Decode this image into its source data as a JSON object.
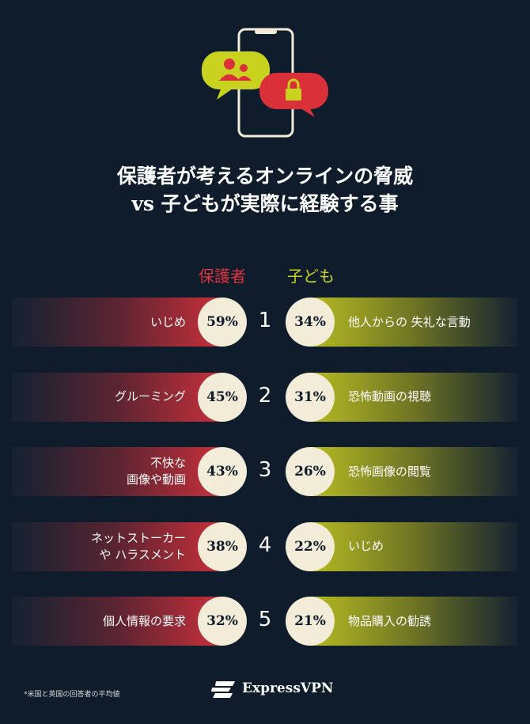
{
  "header": {
    "title_lines": [
      "保護者が考えるオンラインの脅威",
      "vs 子どもが実際に経験する事"
    ]
  },
  "columns": {
    "parents": "保護者",
    "children": "子ども"
  },
  "rows": [
    {
      "rank": 1,
      "parent": {
        "label_lines": [
          "いじめ"
        ],
        "percent": "59%"
      },
      "child": {
        "label_lines": [
          "他人からの 失礼な言動"
        ],
        "percent": "34%"
      }
    },
    {
      "rank": 2,
      "parent": {
        "label_lines": [
          "グルーミング"
        ],
        "percent": "45%"
      },
      "child": {
        "label_lines": [
          "恐怖動画の視聴"
        ],
        "percent": "31%"
      }
    },
    {
      "rank": 3,
      "parent": {
        "label_lines": [
          "不快な",
          "画像や動画"
        ],
        "percent": "43%"
      },
      "child": {
        "label_lines": [
          "恐怖画像の閲覧"
        ],
        "percent": "26%"
      }
    },
    {
      "rank": 4,
      "parent": {
        "label_lines": [
          "ネットストーカー",
          "や ハラスメント"
        ],
        "percent": "38%"
      },
      "child": {
        "label_lines": [
          "いじめ"
        ],
        "percent": "22%"
      }
    },
    {
      "rank": 5,
      "parent": {
        "label_lines": [
          "個人情報の要求"
        ],
        "percent": "32%"
      },
      "child": {
        "label_lines": [
          "物品購入の勧誘"
        ],
        "percent": "21%"
      }
    }
  ],
  "footer": {
    "note": "*米国と英国の回答者の平均値",
    "brand": "ExpressVPN"
  }
}
